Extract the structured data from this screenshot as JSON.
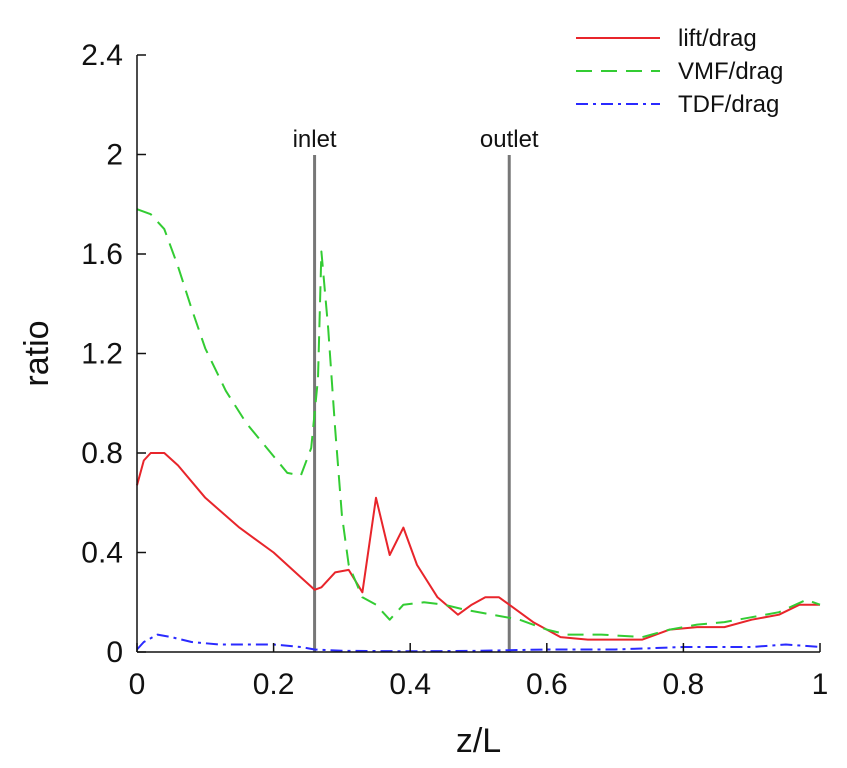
{
  "chart_data": {
    "type": "line",
    "title": "",
    "xlabel": "z/L",
    "ylabel": "ratio",
    "xlim": [
      0,
      1
    ],
    "ylim": [
      0,
      2.4
    ],
    "xticks": [
      0,
      0.2,
      0.4,
      0.6,
      0.8,
      1
    ],
    "xtick_labels": [
      "0",
      "0.2",
      "0.4",
      "0.6",
      "0.8",
      "1"
    ],
    "yticks": [
      0,
      0.4,
      0.8,
      1.2,
      1.6,
      2,
      2.4
    ],
    "ytick_labels": [
      "0",
      "0.4",
      "0.8",
      "1.2",
      "1.6",
      "2",
      "2.4"
    ],
    "grid": false,
    "legend_position": "top-right",
    "series": [
      {
        "name": "lift/drag",
        "color": "#e8252b",
        "dash": "solid",
        "points": [
          [
            0,
            0.67
          ],
          [
            0.01,
            0.77
          ],
          [
            0.02,
            0.8
          ],
          [
            0.04,
            0.8
          ],
          [
            0.06,
            0.75
          ],
          [
            0.1,
            0.62
          ],
          [
            0.15,
            0.5
          ],
          [
            0.2,
            0.4
          ],
          [
            0.24,
            0.3
          ],
          [
            0.26,
            0.25
          ],
          [
            0.27,
            0.26
          ],
          [
            0.29,
            0.32
          ],
          [
            0.31,
            0.33
          ],
          [
            0.33,
            0.24
          ],
          [
            0.35,
            0.62
          ],
          [
            0.37,
            0.39
          ],
          [
            0.39,
            0.5
          ],
          [
            0.41,
            0.35
          ],
          [
            0.44,
            0.22
          ],
          [
            0.47,
            0.15
          ],
          [
            0.49,
            0.19
          ],
          [
            0.51,
            0.22
          ],
          [
            0.53,
            0.22
          ],
          [
            0.55,
            0.18
          ],
          [
            0.58,
            0.12
          ],
          [
            0.62,
            0.06
          ],
          [
            0.66,
            0.05
          ],
          [
            0.7,
            0.05
          ],
          [
            0.74,
            0.05
          ],
          [
            0.78,
            0.09
          ],
          [
            0.82,
            0.1
          ],
          [
            0.86,
            0.1
          ],
          [
            0.9,
            0.13
          ],
          [
            0.94,
            0.15
          ],
          [
            0.97,
            0.19
          ],
          [
            1.0,
            0.19
          ]
        ]
      },
      {
        "name": "VMF/drag",
        "color": "#33cc33",
        "dash": "dashed",
        "points": [
          [
            0,
            1.78
          ],
          [
            0.02,
            1.76
          ],
          [
            0.04,
            1.7
          ],
          [
            0.06,
            1.55
          ],
          [
            0.08,
            1.38
          ],
          [
            0.1,
            1.22
          ],
          [
            0.13,
            1.05
          ],
          [
            0.16,
            0.92
          ],
          [
            0.19,
            0.82
          ],
          [
            0.22,
            0.72
          ],
          [
            0.24,
            0.71
          ],
          [
            0.255,
            0.82
          ],
          [
            0.265,
            1.1
          ],
          [
            0.27,
            1.61
          ],
          [
            0.28,
            1.3
          ],
          [
            0.29,
            0.9
          ],
          [
            0.3,
            0.55
          ],
          [
            0.31,
            0.35
          ],
          [
            0.33,
            0.22
          ],
          [
            0.35,
            0.19
          ],
          [
            0.37,
            0.13
          ],
          [
            0.39,
            0.19
          ],
          [
            0.42,
            0.2
          ],
          [
            0.45,
            0.19
          ],
          [
            0.48,
            0.17
          ],
          [
            0.52,
            0.15
          ],
          [
            0.56,
            0.13
          ],
          [
            0.6,
            0.09
          ],
          [
            0.63,
            0.07
          ],
          [
            0.68,
            0.07
          ],
          [
            0.74,
            0.06
          ],
          [
            0.78,
            0.09
          ],
          [
            0.82,
            0.11
          ],
          [
            0.86,
            0.12
          ],
          [
            0.9,
            0.14
          ],
          [
            0.94,
            0.16
          ],
          [
            0.98,
            0.21
          ],
          [
            1.0,
            0.19
          ]
        ]
      },
      {
        "name": "TDF/drag",
        "color": "#2a2aff",
        "dash": "dashdot",
        "points": [
          [
            0,
            0.01
          ],
          [
            0.01,
            0.04
          ],
          [
            0.03,
            0.07
          ],
          [
            0.05,
            0.06
          ],
          [
            0.08,
            0.04
          ],
          [
            0.12,
            0.03
          ],
          [
            0.16,
            0.03
          ],
          [
            0.2,
            0.03
          ],
          [
            0.24,
            0.02
          ],
          [
            0.26,
            0.01
          ],
          [
            0.3,
            0.005
          ],
          [
            0.4,
            0.003
          ],
          [
            0.5,
            0.005
          ],
          [
            0.6,
            0.01
          ],
          [
            0.7,
            0.01
          ],
          [
            0.8,
            0.02
          ],
          [
            0.9,
            0.02
          ],
          [
            0.95,
            0.03
          ],
          [
            1.0,
            0.02
          ]
        ]
      }
    ],
    "annotations": [
      {
        "label": "inlet",
        "x": 0.26
      },
      {
        "label": "outlet",
        "x": 0.545
      }
    ]
  }
}
